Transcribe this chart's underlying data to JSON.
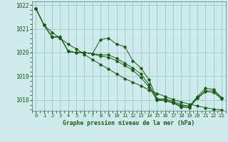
{
  "title": "Graphe pression niveau de la mer (hPa)",
  "background_color": "#ceeaea",
  "plot_bg_color": "#ceeaea",
  "line_color": "#1a5c1a",
  "grid_color": "#9bbfbf",
  "ylim": [
    1017.55,
    1022.15
  ],
  "xlim": [
    -0.5,
    23.5
  ],
  "yticks": [
    1018,
    1019,
    1020,
    1021,
    1022
  ],
  "xtick_labels": [
    "0",
    "1",
    "2",
    "3",
    "4",
    "5",
    "6",
    "7",
    "8",
    "9",
    "10",
    "11",
    "12",
    "13",
    "14",
    "15",
    "16",
    "17",
    "18",
    "19",
    "20",
    "21",
    "22",
    "23"
  ],
  "series": [
    [
      1021.85,
      1021.15,
      1020.65,
      1020.65,
      1020.05,
      1020.0,
      1020.0,
      1019.95,
      1020.55,
      1020.6,
      1020.35,
      1020.25,
      1019.65,
      1019.35,
      1018.85,
      1018.05,
      1018.05,
      1017.95,
      1017.8,
      1017.75,
      1018.15,
      1018.5,
      1018.45,
      1018.1
    ],
    [
      1021.85,
      1021.15,
      1020.65,
      1020.65,
      1020.05,
      1020.0,
      1020.0,
      1019.95,
      1019.9,
      1019.9,
      1019.75,
      1019.55,
      1019.35,
      1019.1,
      1018.65,
      1018.02,
      1018.0,
      1017.9,
      1017.75,
      1017.72,
      1018.1,
      1018.4,
      1018.38,
      1018.08
    ],
    [
      1021.85,
      1021.15,
      1020.65,
      1020.65,
      1020.05,
      1020.0,
      1020.0,
      1019.95,
      1019.85,
      1019.8,
      1019.65,
      1019.45,
      1019.25,
      1018.95,
      1018.55,
      1017.99,
      1017.97,
      1017.87,
      1017.7,
      1017.68,
      1018.08,
      1018.35,
      1018.32,
      1018.05
    ]
  ],
  "trend_line": [
    1021.85,
    1021.15,
    1020.85,
    1020.6,
    1020.35,
    1020.15,
    1019.92,
    1019.7,
    1019.5,
    1019.3,
    1019.1,
    1018.9,
    1018.75,
    1018.6,
    1018.42,
    1018.28,
    1018.15,
    1018.02,
    1017.92,
    1017.83,
    1017.75,
    1017.68,
    1017.62,
    1017.58
  ]
}
